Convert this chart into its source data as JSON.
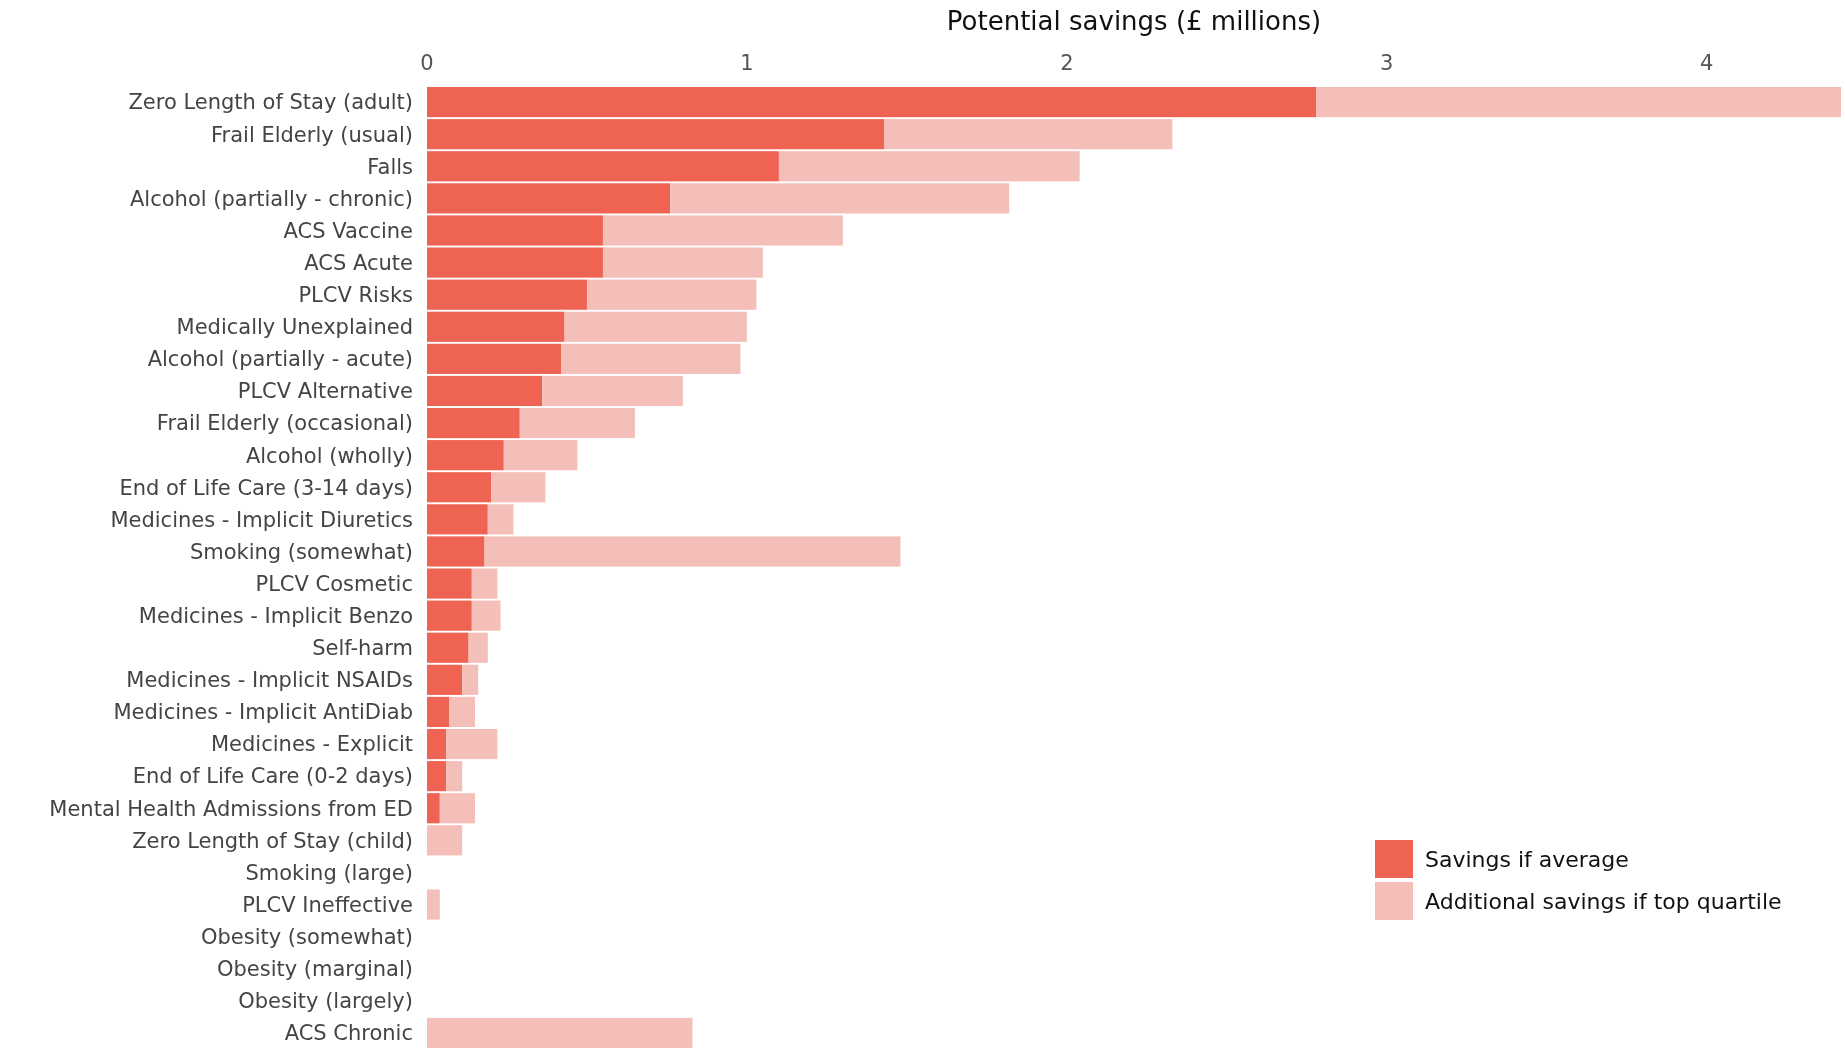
{
  "chart_data": {
    "type": "bar",
    "orientation": "horizontal",
    "stacked": true,
    "xlabel": "Potential savings (£ millions)",
    "categories": [
      "Zero Length of Stay (adult)",
      "Frail Elderly (usual)",
      "Falls",
      "Alcohol (partially - chronic)",
      "ACS Vaccine",
      "ACS Acute",
      "PLCV Risks",
      "Medically Unexplained",
      "Alcohol (partially - acute)",
      "PLCV Alternative",
      "Frail Elderly (occasional)",
      "Alcohol (wholly)",
      "End of Life Care (3-14 days)",
      "Medicines - Implicit Diuretics",
      "Smoking (somewhat)",
      "PLCV Cosmetic",
      "Medicines - Implicit Benzo",
      "Self-harm",
      "Medicines - Implicit NSAIDs",
      "Medicines - Implicit AntiDiab",
      "Medicines - Explicit",
      "End of Life Care (0-2 days)",
      "Mental Health Admissions from ED",
      "Zero Length of Stay (child)",
      "Smoking (large)",
      "PLCV Ineffective",
      "Obesity (somewhat)",
      "Obesity (marginal)",
      "Obesity (largely)",
      "ACS Chronic"
    ],
    "series": [
      {
        "name": "Savings if average",
        "color": "#ee6352",
        "values": [
          2.78,
          1.43,
          1.1,
          0.76,
          0.55,
          0.55,
          0.5,
          0.43,
          0.42,
          0.36,
          0.29,
          0.24,
          0.2,
          0.19,
          0.18,
          0.14,
          0.14,
          0.13,
          0.11,
          0.07,
          0.06,
          0.06,
          0.04,
          0,
          0,
          0,
          0,
          0,
          0,
          0
        ]
      },
      {
        "name": "Additional savings if top quartile",
        "color": "#f4bfb9",
        "values": [
          1.64,
          0.9,
          0.94,
          1.06,
          0.75,
          0.5,
          0.53,
          0.57,
          0.56,
          0.44,
          0.36,
          0.23,
          0.17,
          0.08,
          1.3,
          0.08,
          0.09,
          0.06,
          0.05,
          0.08,
          0.16,
          0.05,
          0.11,
          0.11,
          0,
          0.04,
          0,
          0,
          0,
          0.83
        ]
      }
    ],
    "xlim": [
      0,
      4.42
    ],
    "xticks": [
      0,
      1,
      2,
      3,
      4
    ],
    "legend": "bottom right"
  }
}
